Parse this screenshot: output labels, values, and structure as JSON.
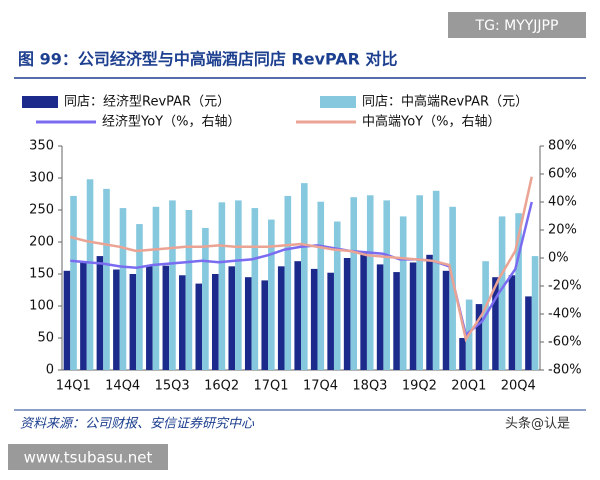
{
  "watermark_top": "TG: MYYJJPP",
  "source": "资料来源：公司财报、安信证券研究中心",
  "credit": "头条@认是",
  "watermark_bottom": "www.tsubasu.net",
  "chart_data": {
    "type": "bar",
    "title": "图 99：公司经济型与中高端酒店同店 RevPAR 对比",
    "categories": [
      "14Q1",
      null,
      null,
      "14Q4",
      null,
      null,
      "15Q3",
      null,
      null,
      "16Q2",
      null,
      null,
      "17Q1",
      null,
      null,
      "17Q4",
      null,
      null,
      "18Q3",
      null,
      null,
      "19Q2",
      null,
      null,
      "20Q1",
      null,
      null,
      "20Q4",
      null
    ],
    "series": [
      {
        "name": "同店：经济型RevPAR（元）",
        "type": "bar",
        "color": "#1c2a8c",
        "values": [
          155,
          170,
          178,
          157,
          150,
          162,
          163,
          148,
          135,
          150,
          162,
          145,
          140,
          162,
          170,
          158,
          152,
          175,
          183,
          165,
          153,
          168,
          180,
          155,
          50,
          103,
          145,
          148,
          115
        ]
      },
      {
        "name": "同店：中高端RevPAR（元）",
        "type": "bar",
        "color": "#86c8de",
        "values": [
          272,
          298,
          283,
          253,
          228,
          255,
          265,
          250,
          222,
          262,
          265,
          253,
          235,
          272,
          292,
          263,
          232,
          270,
          273,
          265,
          240,
          273,
          280,
          255,
          110,
          170,
          240,
          245,
          178
        ]
      },
      {
        "name": "经济型YoY（%，右轴）",
        "type": "line",
        "axis": "y2",
        "color": "#7a6cf0",
        "values": [
          -2,
          -3,
          -4,
          -6,
          -7,
          -5,
          -4,
          -3,
          -2,
          -3,
          -2,
          -1,
          2,
          6,
          8,
          9,
          7,
          5,
          4,
          3,
          -1,
          -1,
          -2,
          -6,
          -55,
          -45,
          -25,
          -8,
          40
        ]
      },
      {
        "name": "中高端YoY（%，右轴）",
        "type": "line",
        "axis": "y2",
        "color": "#eba394",
        "values": [
          15,
          12,
          10,
          8,
          5,
          6,
          7,
          8,
          8,
          9,
          8,
          8,
          8,
          9,
          10,
          8,
          6,
          5,
          2,
          1,
          0,
          -1,
          -2,
          -5,
          -58,
          -40,
          -15,
          5,
          58
        ]
      }
    ],
    "ylim": [
      0,
      350
    ],
    "yticks": [
      0,
      50,
      100,
      150,
      200,
      250,
      300,
      350
    ],
    "y2lim": [
      -80,
      80
    ],
    "y2ticks": [
      {
        "value": -80,
        "label": "-80%"
      },
      {
        "value": -60,
        "label": "-60%"
      },
      {
        "value": -40,
        "label": "-40%"
      },
      {
        "value": -20,
        "label": "-20%"
      },
      {
        "value": 0,
        "label": "0%"
      },
      {
        "value": 20,
        "label": "20%"
      },
      {
        "value": 40,
        "label": "40%"
      },
      {
        "value": 60,
        "label": "60%"
      },
      {
        "value": 80,
        "label": "80%"
      }
    ]
  }
}
